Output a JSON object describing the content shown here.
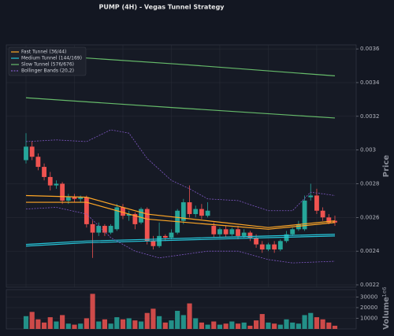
{
  "chart_data": {
    "type": "candlestick",
    "title": "PUMP (4H) - Vegas Tunnel Strategy",
    "ylabel": "Price",
    "volume_label": "Volume",
    "volume_offset": "1e6",
    "up_color": "#26a69a",
    "down_color": "#ef5350",
    "grid": true,
    "legend": "upper left",
    "ylim": [
      0.002186,
      0.003624
    ],
    "yticks": [
      0.0022,
      0.0024,
      0.0026,
      0.0028,
      0.003,
      0.0032,
      0.0034,
      0.0036
    ],
    "volume_ylim": [
      0,
      37000
    ],
    "volume_ticks": [
      10000,
      20000,
      30000
    ],
    "candles": {
      "open": [
        0.00294,
        0.00302,
        0.00296,
        0.0029,
        0.00284,
        0.00279,
        0.0028,
        0.0027,
        0.00272,
        0.00271,
        0.00272,
        0.00256,
        0.00251,
        0.00255,
        0.00251,
        0.00253,
        0.00266,
        0.00261,
        0.00262,
        0.00257,
        0.00265,
        0.00246,
        0.00243,
        0.00249,
        0.00248,
        0.00251,
        0.00258,
        0.00269,
        0.00262,
        0.00265,
        0.00261,
        0.00255,
        0.0025,
        0.00253,
        0.0025,
        0.00253,
        0.00249,
        0.00251,
        0.00248,
        0.00244,
        0.00241,
        0.00244,
        0.00241,
        0.00246,
        0.0025,
        0.00253,
        0.00253,
        0.00272,
        0.00273,
        0.00264,
        0.0026,
        0.00258
      ],
      "high": [
        0.0031,
        0.00305,
        0.00298,
        0.00292,
        0.00287,
        0.00282,
        0.00281,
        0.00274,
        0.00274,
        0.00273,
        0.00273,
        0.00258,
        0.00257,
        0.00256,
        0.00256,
        0.00268,
        0.00268,
        0.00264,
        0.00263,
        0.00266,
        0.00266,
        0.00249,
        0.00257,
        0.0025,
        0.00253,
        0.00265,
        0.00271,
        0.00279,
        0.00267,
        0.00268,
        0.00269,
        0.00257,
        0.00254,
        0.00255,
        0.00254,
        0.00255,
        0.00253,
        0.00252,
        0.0025,
        0.00246,
        0.00245,
        0.00246,
        0.00247,
        0.00252,
        0.00254,
        0.00258,
        0.00273,
        0.0028,
        0.00277,
        0.00266,
        0.00262,
        0.00261
      ],
      "low": [
        0.00292,
        0.00294,
        0.00288,
        0.00282,
        0.00276,
        0.00277,
        0.00268,
        0.00268,
        0.00269,
        0.00269,
        0.00254,
        0.00236,
        0.00249,
        0.00249,
        0.0025,
        0.00252,
        0.00259,
        0.00258,
        0.00253,
        0.00256,
        0.00244,
        0.00241,
        0.00242,
        0.00246,
        0.00247,
        0.0025,
        0.00256,
        0.0026,
        0.0026,
        0.00259,
        0.0026,
        0.00248,
        0.00248,
        0.00248,
        0.00249,
        0.00247,
        0.00248,
        0.00246,
        0.00242,
        0.00239,
        0.0024,
        0.00239,
        0.0024,
        0.00245,
        0.00249,
        0.00252,
        0.00252,
        0.0027,
        0.00262,
        0.00258,
        0.00256,
        0.00255
      ],
      "close": [
        0.00302,
        0.00296,
        0.0029,
        0.00284,
        0.00279,
        0.0028,
        0.0027,
        0.00272,
        0.00271,
        0.00272,
        0.00256,
        0.00251,
        0.00255,
        0.00251,
        0.00255,
        0.00266,
        0.00261,
        0.00262,
        0.00256,
        0.00265,
        0.00246,
        0.00243,
        0.00249,
        0.00248,
        0.00251,
        0.00264,
        0.00269,
        0.00262,
        0.00265,
        0.00261,
        0.00264,
        0.0025,
        0.00253,
        0.0025,
        0.00253,
        0.00249,
        0.00251,
        0.00248,
        0.00244,
        0.00241,
        0.00244,
        0.00241,
        0.00246,
        0.0025,
        0.00253,
        0.00256,
        0.0027,
        0.00273,
        0.00264,
        0.0026,
        0.00257,
        0.00257
      ],
      "volume": [
        12000,
        16000,
        9000,
        6000,
        11000,
        7000,
        13000,
        5000,
        4000,
        5000,
        10000,
        33000,
        7000,
        9000,
        5000,
        11000,
        9000,
        10000,
        8000,
        7000,
        15000,
        19000,
        12000,
        6000,
        8000,
        17000,
        13000,
        24000,
        10000,
        6000,
        4000,
        7000,
        4000,
        5000,
        7000,
        5000,
        6000,
        3000,
        8000,
        14000,
        6000,
        5000,
        4000,
        9000,
        6000,
        5000,
        13000,
        15000,
        11000,
        9000,
        6000,
        3000
      ]
    },
    "series": [
      {
        "name": "Fast Tunnel (36/44)",
        "color": "#ffa726",
        "dash": false,
        "lines": [
          {
            "x": [
              0,
              10,
              20,
              30,
              40,
              51
            ],
            "values": [
              0.00273,
              0.00272,
              0.00262,
              0.00258,
              0.00254,
              0.00258
            ]
          },
          {
            "x": [
              0,
              10,
              20,
              30,
              40,
              51
            ],
            "values": [
              0.00269,
              0.00269,
              0.00259,
              0.00256,
              0.00253,
              0.00257
            ]
          }
        ]
      },
      {
        "name": "Medium Tunnel (144/169)",
        "color": "#26c6da",
        "dash": false,
        "lines": [
          {
            "x": [
              0,
              10,
              20,
              30,
              40,
              51
            ],
            "values": [
              0.00244,
              0.00246,
              0.00247,
              0.00248,
              0.00249,
              0.0025
            ]
          },
          {
            "x": [
              0,
              10,
              20,
              30,
              40,
              51
            ],
            "values": [
              0.00243,
              0.00245,
              0.00246,
              0.00247,
              0.00248,
              0.00249
            ]
          }
        ]
      },
      {
        "name": "Slow Tunnel (576/676)",
        "color": "#66bb6a",
        "dash": false,
        "lines": [
          {
            "x": [
              0,
              25,
              51
            ],
            "values": [
              0.00357,
              0.00351,
              0.00344
            ]
          },
          {
            "x": [
              0,
              25,
              51
            ],
            "values": [
              0.00331,
              0.00325,
              0.00319
            ]
          }
        ]
      },
      {
        "name": "Bollinger Bands (20,2)",
        "color": "#7e57c2",
        "dash": true,
        "lines": [
          {
            "x": [
              0,
              5,
              10,
              14,
              17,
              20,
              24,
              27,
              30,
              35,
              40,
              44,
              47,
              51
            ],
            "values": [
              0.00305,
              0.00306,
              0.00305,
              0.00312,
              0.0031,
              0.00295,
              0.00282,
              0.00277,
              0.00271,
              0.0027,
              0.00264,
              0.00264,
              0.00275,
              0.00273
            ]
          },
          {
            "x": [
              0,
              5,
              10,
              14,
              18,
              22,
              26,
              30,
              35,
              40,
              44,
              51
            ],
            "values": [
              0.00265,
              0.00266,
              0.00262,
              0.00248,
              0.0024,
              0.00236,
              0.00238,
              0.0024,
              0.0024,
              0.00235,
              0.00233,
              0.00234
            ]
          }
        ]
      }
    ]
  }
}
